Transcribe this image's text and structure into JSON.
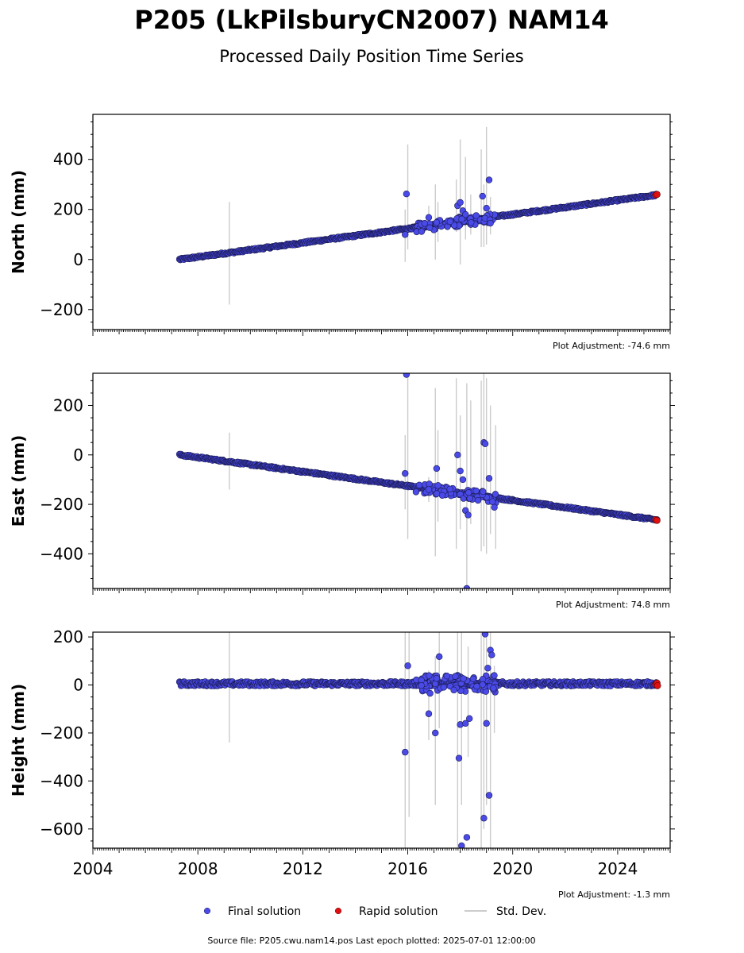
{
  "title": "P205 (LkPilsburyCN2007) NAM14",
  "subtitle": "Processed Daily Position Time Series",
  "footer": "Source file: P205.cwu.nam14.pos  Last epoch plotted: 2025-07-01 12:00:00",
  "colors": {
    "final": "#4a4ae8",
    "final_edge": "#1a1a50",
    "rapid": "#e01010",
    "stddev": "#cccccc"
  },
  "legend": {
    "final_label": "Final solution",
    "rapid_label": "Rapid solution",
    "std_label": "Std. Dev."
  },
  "chart_data": [
    {
      "type": "scatter",
      "ylabel": "North (mm)",
      "plot_adjustment": "Plot Adjustment: -74.6 mm",
      "xlim": [
        2004,
        2026
      ],
      "ylim": [
        -280,
        580
      ],
      "yticks": [
        -200,
        0,
        200,
        400
      ],
      "xticks": [
        2004,
        2008,
        2012,
        2016,
        2020,
        2024
      ],
      "show_xtick_labels": false,
      "trend": {
        "x_start": 2007.3,
        "y_start": 0,
        "x_end": 2025.5,
        "y_end": 258,
        "scatter": 4,
        "height_scatter": 0
      },
      "outliers": [
        {
          "x": 2015.95,
          "y": 262
        },
        {
          "x": 2015.9,
          "y": 100
        },
        {
          "x": 2016.8,
          "y": 168
        },
        {
          "x": 2017.1,
          "y": 148
        },
        {
          "x": 2017.9,
          "y": 215
        },
        {
          "x": 2018.0,
          "y": 228
        },
        {
          "x": 2018.1,
          "y": 195
        },
        {
          "x": 2018.2,
          "y": 180
        },
        {
          "x": 2018.85,
          "y": 253
        },
        {
          "x": 2019.0,
          "y": 205
        },
        {
          "x": 2019.1,
          "y": 318
        },
        {
          "x": 2019.15,
          "y": 145
        }
      ],
      "stddev": [
        {
          "x": 2009.2,
          "lo": -180,
          "hi": 230
        },
        {
          "x": 2015.9,
          "lo": -10,
          "hi": 200
        },
        {
          "x": 2016.0,
          "lo": 40,
          "hi": 460
        },
        {
          "x": 2016.8,
          "lo": 120,
          "hi": 215
        },
        {
          "x": 2017.05,
          "lo": 0,
          "hi": 300
        },
        {
          "x": 2017.15,
          "lo": 70,
          "hi": 230
        },
        {
          "x": 2017.85,
          "lo": 110,
          "hi": 320
        },
        {
          "x": 2018.0,
          "lo": -20,
          "hi": 480
        },
        {
          "x": 2018.2,
          "lo": 80,
          "hi": 410
        },
        {
          "x": 2018.4,
          "lo": 100,
          "hi": 260
        },
        {
          "x": 2018.8,
          "lo": 50,
          "hi": 440
        },
        {
          "x": 2018.9,
          "lo": 50,
          "hi": 300
        },
        {
          "x": 2019.0,
          "lo": 60,
          "hi": 530
        },
        {
          "x": 2019.15,
          "lo": 100,
          "hi": 250
        }
      ],
      "rapid": [
        {
          "x": 2025.45,
          "y": 258
        },
        {
          "x": 2025.5,
          "y": 260
        }
      ]
    },
    {
      "type": "scatter",
      "ylabel": "East (mm)",
      "plot_adjustment": "Plot Adjustment: 74.8 mm",
      "xlim": [
        2004,
        2026
      ],
      "ylim": [
        -540,
        330
      ],
      "yticks": [
        -400,
        -200,
        0,
        200
      ],
      "xticks": [
        2004,
        2008,
        2012,
        2016,
        2020,
        2024
      ],
      "show_xtick_labels": false,
      "trend": {
        "x_start": 2007.3,
        "y_start": 0,
        "x_end": 2025.5,
        "y_end": -263,
        "scatter": 4,
        "height_scatter": 0
      },
      "outliers": [
        {
          "x": 2015.95,
          "y": 325
        },
        {
          "x": 2015.9,
          "y": -75
        },
        {
          "x": 2016.8,
          "y": -140
        },
        {
          "x": 2017.1,
          "y": -55
        },
        {
          "x": 2017.9,
          "y": 0
        },
        {
          "x": 2018.0,
          "y": -65
        },
        {
          "x": 2018.1,
          "y": -100
        },
        {
          "x": 2018.2,
          "y": -225
        },
        {
          "x": 2018.3,
          "y": -243
        },
        {
          "x": 2018.25,
          "y": -540
        },
        {
          "x": 2018.9,
          "y": 50
        },
        {
          "x": 2018.95,
          "y": 45
        },
        {
          "x": 2019.1,
          "y": -95
        },
        {
          "x": 2019.3,
          "y": -212
        }
      ],
      "stddev": [
        {
          "x": 2009.2,
          "lo": -140,
          "hi": 90
        },
        {
          "x": 2015.9,
          "lo": -220,
          "hi": 80
        },
        {
          "x": 2016.0,
          "lo": -340,
          "hi": 320
        },
        {
          "x": 2016.8,
          "lo": -190,
          "hi": -90
        },
        {
          "x": 2017.05,
          "lo": -410,
          "hi": 270
        },
        {
          "x": 2017.15,
          "lo": -270,
          "hi": 100
        },
        {
          "x": 2017.85,
          "lo": -380,
          "hi": 310
        },
        {
          "x": 2018.0,
          "lo": -300,
          "hi": 160
        },
        {
          "x": 2018.25,
          "lo": -540,
          "hi": 290
        },
        {
          "x": 2018.4,
          "lo": -280,
          "hi": 220
        },
        {
          "x": 2018.8,
          "lo": -390,
          "hi": 300
        },
        {
          "x": 2018.9,
          "lo": -370,
          "hi": 330
        },
        {
          "x": 2019.0,
          "lo": -400,
          "hi": 310
        },
        {
          "x": 2019.15,
          "lo": -320,
          "hi": 200
        },
        {
          "x": 2019.35,
          "lo": -380,
          "hi": 120
        }
      ],
      "rapid": [
        {
          "x": 2025.45,
          "y": -262
        },
        {
          "x": 2025.5,
          "y": -265
        }
      ]
    },
    {
      "type": "scatter",
      "ylabel": "Height (mm)",
      "plot_adjustment": "Plot Adjustment: -1.3 mm",
      "xlim": [
        2004,
        2026
      ],
      "ylim": [
        -680,
        220
      ],
      "yticks": [
        -600,
        -400,
        -200,
        0,
        200
      ],
      "xticks": [
        2004,
        2008,
        2012,
        2016,
        2020,
        2024
      ],
      "show_xtick_labels": true,
      "trend": {
        "x_start": 2007.3,
        "y_start": 5,
        "x_end": 2025.5,
        "y_end": 5,
        "scatter": 9,
        "height_scatter": 1
      },
      "outliers": [
        {
          "x": 2015.9,
          "y": -280
        },
        {
          "x": 2016.0,
          "y": 80
        },
        {
          "x": 2016.8,
          "y": -120
        },
        {
          "x": 2016.85,
          "y": -35
        },
        {
          "x": 2017.05,
          "y": -200
        },
        {
          "x": 2017.2,
          "y": 118
        },
        {
          "x": 2017.95,
          "y": -305
        },
        {
          "x": 2018.0,
          "y": -165
        },
        {
          "x": 2018.05,
          "y": -670
        },
        {
          "x": 2018.2,
          "y": -160
        },
        {
          "x": 2018.25,
          "y": -635
        },
        {
          "x": 2018.35,
          "y": -140
        },
        {
          "x": 2018.95,
          "y": 212
        },
        {
          "x": 2018.9,
          "y": -555
        },
        {
          "x": 2019.0,
          "y": -160
        },
        {
          "x": 2019.05,
          "y": 70
        },
        {
          "x": 2019.15,
          "y": 145
        },
        {
          "x": 2019.2,
          "y": 125
        },
        {
          "x": 2019.1,
          "y": -460
        }
      ],
      "stddev": [
        {
          "x": 2009.2,
          "lo": -240,
          "hi": 220
        },
        {
          "x": 2015.9,
          "lo": -680,
          "hi": 220
        },
        {
          "x": 2016.05,
          "lo": -550,
          "hi": 220
        },
        {
          "x": 2016.8,
          "lo": -230,
          "hi": 60
        },
        {
          "x": 2017.05,
          "lo": -500,
          "hi": 120
        },
        {
          "x": 2017.2,
          "lo": -180,
          "hi": 220
        },
        {
          "x": 2017.9,
          "lo": -680,
          "hi": 220
        },
        {
          "x": 2018.05,
          "lo": -500,
          "hi": 220
        },
        {
          "x": 2018.3,
          "lo": -300,
          "hi": 160
        },
        {
          "x": 2018.8,
          "lo": -680,
          "hi": 220
        },
        {
          "x": 2018.9,
          "lo": -600,
          "hi": 220
        },
        {
          "x": 2019.0,
          "lo": -500,
          "hi": 220
        },
        {
          "x": 2019.15,
          "lo": -680,
          "hi": 220
        },
        {
          "x": 2019.3,
          "lo": -200,
          "hi": 80
        }
      ],
      "rapid": [
        {
          "x": 2025.45,
          "y": 2
        },
        {
          "x": 2025.5,
          "y": 8
        },
        {
          "x": 2025.52,
          "y": -3
        }
      ]
    }
  ]
}
